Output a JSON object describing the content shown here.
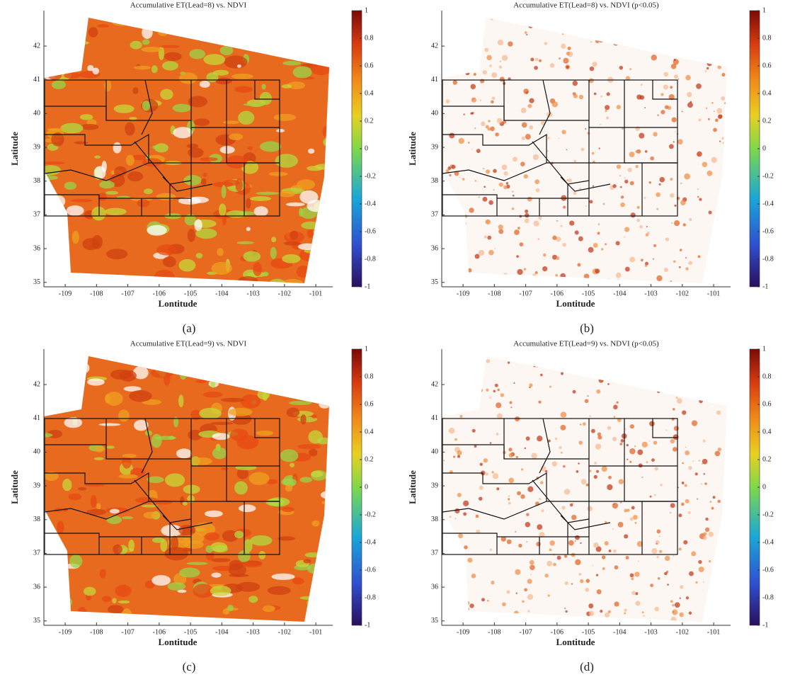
{
  "panels": [
    {
      "title": "Accumulative ET(Lead=8) vs. NDVI",
      "caption": "(a)",
      "xlabel": "Lontitude",
      "ylabel": "Latitude",
      "style": "all",
      "xlim": [
        -109.68,
        -100.46
      ],
      "ylim": [
        34.87,
        43.05
      ],
      "xticks": [
        -109,
        -108,
        -107,
        -106,
        -105,
        -104,
        -103,
        -102,
        -101
      ],
      "yticks": [
        35,
        36,
        37,
        38,
        39,
        40,
        41,
        42
      ],
      "colorbar": {
        "lim": [
          -1,
          1
        ],
        "ticks": [
          -1,
          -0.8,
          -0.6,
          -0.4,
          -0.2,
          0,
          0.2,
          0.4,
          0.6,
          0.8,
          1
        ]
      }
    },
    {
      "title": "Accumulative ET(Lead=8) vs. NDVI (p<0.05)",
      "caption": "(b)",
      "xlabel": "Lontitude",
      "ylabel": "Latitude",
      "style": "significant",
      "xlim": [
        -109.68,
        -100.46
      ],
      "ylim": [
        34.87,
        43.05
      ],
      "xticks": [
        -109,
        -108,
        -107,
        -106,
        -105,
        -104,
        -103,
        -102,
        -101
      ],
      "yticks": [
        35,
        36,
        37,
        38,
        39,
        40,
        41,
        42
      ],
      "colorbar": {
        "lim": [
          -1,
          1
        ],
        "ticks": [
          -1,
          -0.8,
          -0.6,
          -0.4,
          -0.2,
          0,
          0.2,
          0.4,
          0.6,
          0.8,
          1
        ]
      }
    },
    {
      "title": "Accumulative ET(Lead=9) vs. NDVI",
      "caption": "(c)",
      "xlabel": "Lontitude",
      "ylabel": "Latitude",
      "style": "all",
      "xlim": [
        -109.68,
        -100.46
      ],
      "ylim": [
        34.87,
        43.05
      ],
      "xticks": [
        -109,
        -108,
        -107,
        -106,
        -105,
        -104,
        -103,
        -102,
        -101
      ],
      "yticks": [
        35,
        36,
        37,
        38,
        39,
        40,
        41,
        42
      ],
      "colorbar": {
        "lim": [
          -1,
          1
        ],
        "ticks": [
          -1,
          -0.8,
          -0.6,
          -0.4,
          -0.2,
          0,
          0.2,
          0.4,
          0.6,
          0.8,
          1
        ]
      }
    },
    {
      "title": "Accumulative ET(Lead=9) vs. NDVI (p<0.05)",
      "caption": "(d)",
      "xlabel": "Lontitude",
      "ylabel": "Latitude",
      "style": "significant",
      "xlim": [
        -109.68,
        -100.46
      ],
      "ylim": [
        34.87,
        43.05
      ],
      "xticks": [
        -109,
        -108,
        -107,
        -106,
        -105,
        -104,
        -103,
        -102,
        -101
      ],
      "yticks": [
        35,
        36,
        37,
        38,
        39,
        40,
        41,
        42
      ],
      "colorbar": {
        "lim": [
          -1,
          1
        ],
        "ticks": [
          -1,
          -0.8,
          -0.6,
          -0.4,
          -0.2,
          0,
          0.2,
          0.4,
          0.6,
          0.8,
          1
        ]
      }
    }
  ]
}
